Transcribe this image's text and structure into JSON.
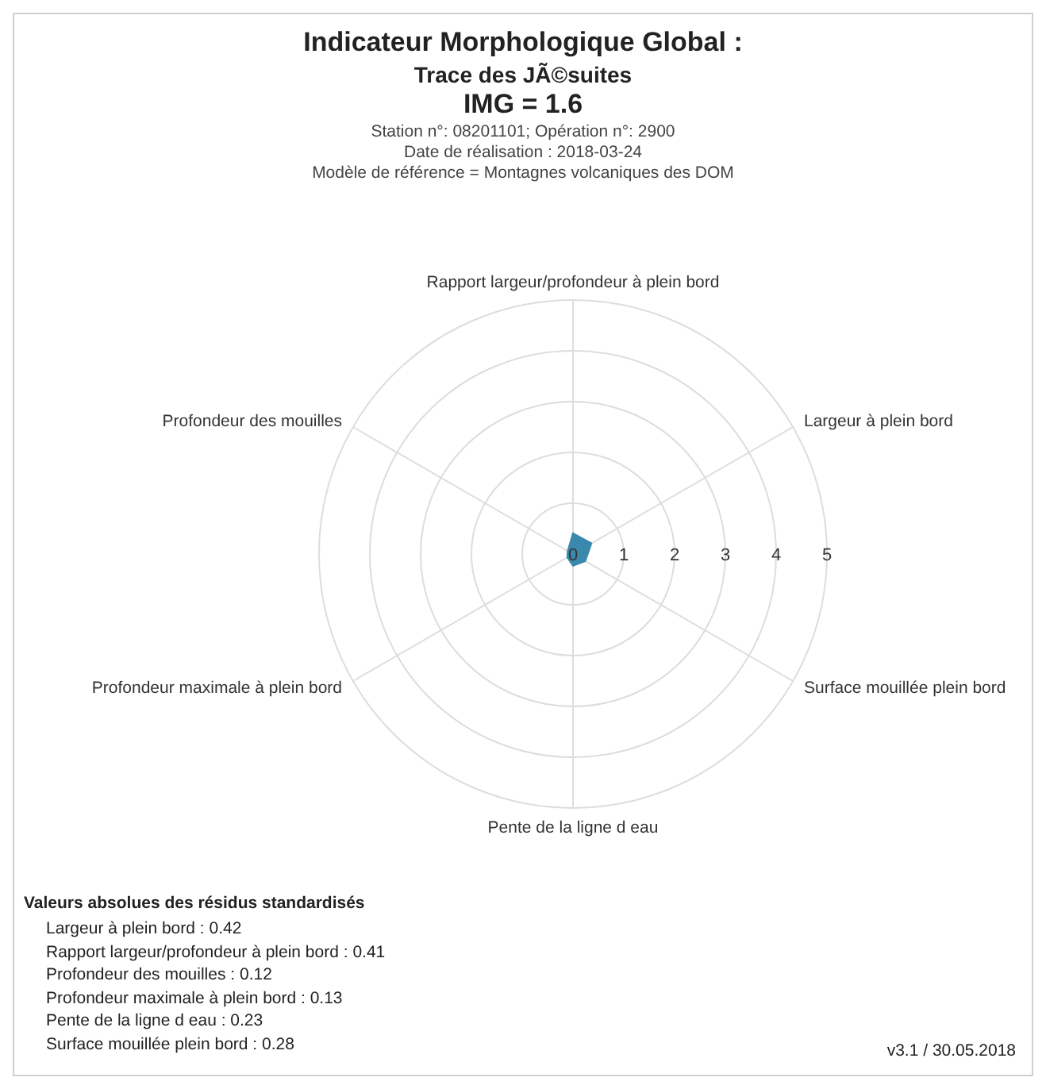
{
  "chart_data": {
    "type": "radar",
    "title": "Indicateur Morphologique Global :",
    "subtitle": "Trace des JÃ©suites",
    "categories": [
      "Rapport largeur/profondeur à plein bord",
      "Largeur à plein bord",
      "Surface mouillée plein bord",
      "Pente de la ligne d eau",
      "Profondeur maximale à plein bord",
      "Profondeur des mouilles"
    ],
    "series": [
      {
        "color": "#3a89ad",
        "values": [
          0.41,
          0.42,
          0.28,
          0.23,
          0.13,
          0.12
        ]
      }
    ],
    "ylim": [
      0,
      5
    ],
    "yticks": [
      0,
      1,
      2,
      3,
      4,
      5
    ],
    "grid": true,
    "annotations": [
      "IMG =  1.6",
      "Station n°: 08201101; Opération n°: 2900",
      "Date de réalisation : 2018-03-24",
      "Modèle de référence =  Montagnes volcaniques des DOM",
      "Valeurs absolues des résidus standardisés",
      "Largeur à plein bord : 0.42",
      "Rapport largeur/profondeur à plein bord : 0.41",
      "Profondeur des mouilles : 0.12",
      "Profondeur maximale à plein bord : 0.13",
      "Pente de la ligne d eau : 0.23",
      "Surface mouillée plein bord : 0.28",
      "v3.1 / 30.05.2018"
    ]
  }
}
